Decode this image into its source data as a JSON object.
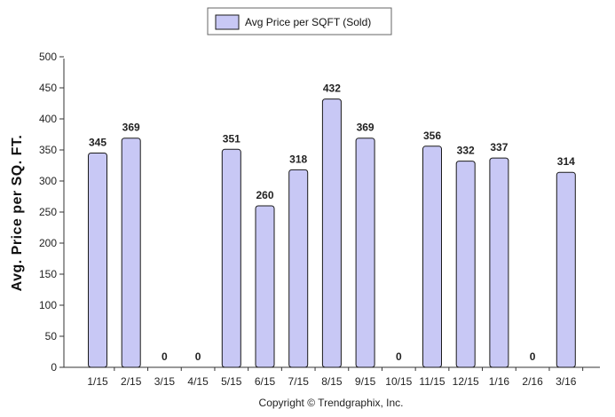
{
  "chart_data": {
    "type": "bar",
    "ylabel": "Avg. Price per SQ. FT.",
    "xlabel": "",
    "ylim": [
      0,
      500
    ],
    "yticks": [
      0,
      50,
      100,
      150,
      200,
      250,
      300,
      350,
      400,
      450,
      500
    ],
    "grid": false,
    "legend_position": "top-center",
    "categories": [
      "1/15",
      "2/15",
      "3/15",
      "4/15",
      "5/15",
      "6/15",
      "7/15",
      "8/15",
      "9/15",
      "10/15",
      "11/15",
      "12/15",
      "1/16",
      "2/16",
      "3/16"
    ],
    "series": [
      {
        "name": "Avg Price per SQFT (Sold)",
        "values": [
          345,
          369,
          0,
          0,
          351,
          260,
          318,
          432,
          369,
          0,
          356,
          332,
          337,
          0,
          314
        ],
        "fill_color": "#c8c8f5",
        "border_color": "#1a1a1a"
      }
    ]
  },
  "footer": {
    "copyright": "Copyright © Trendgraphix, Inc."
  }
}
